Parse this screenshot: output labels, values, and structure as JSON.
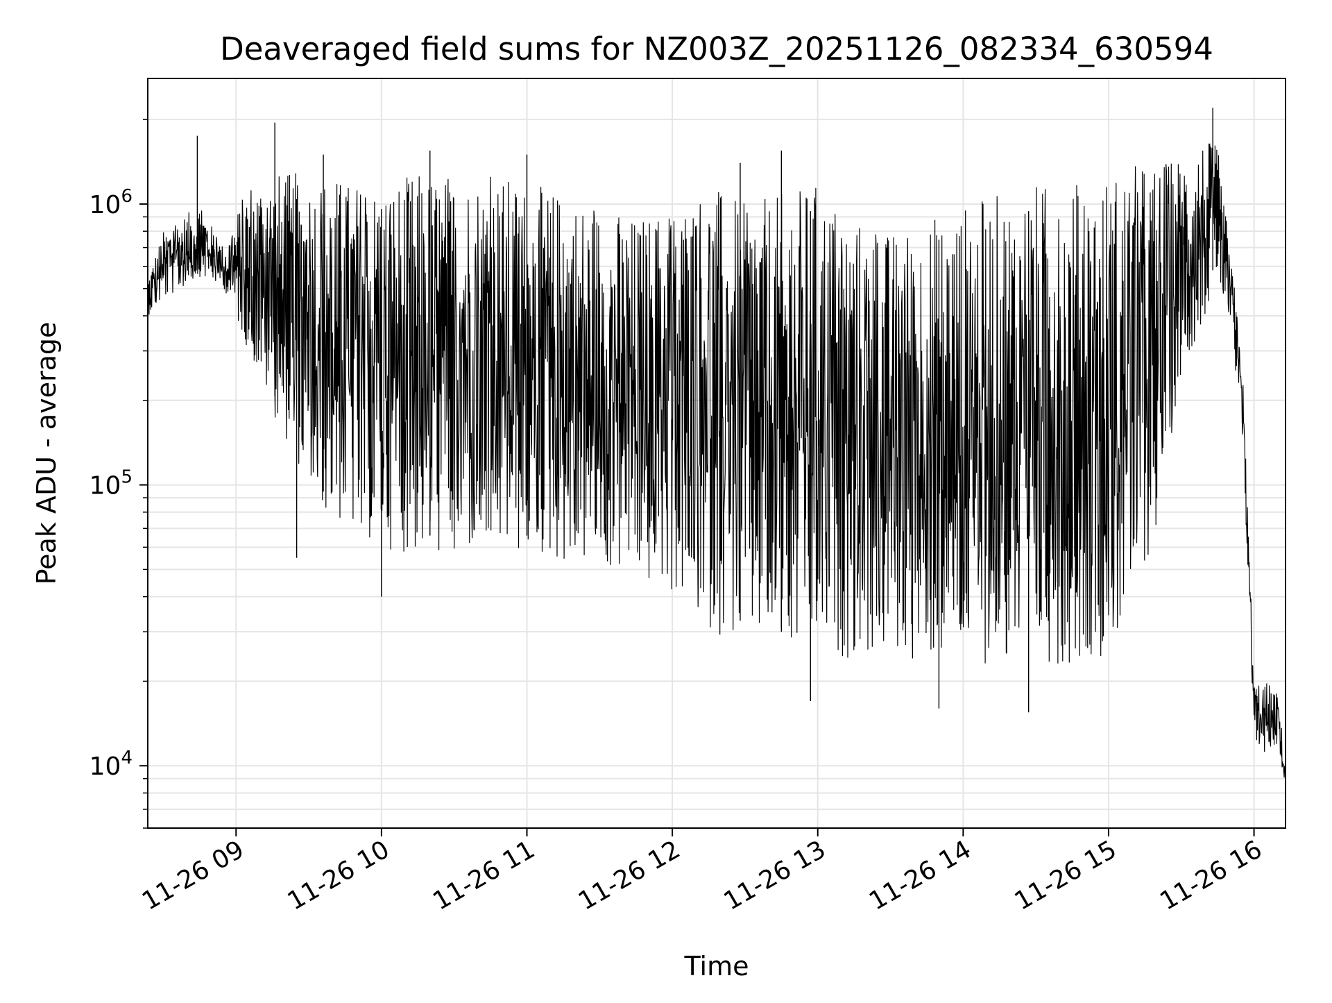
{
  "chart_data": {
    "type": "line",
    "title": "Deaveraged field sums for NZ003Z_20251126_082334_630594",
    "xlabel": "Time",
    "ylabel": "Peak ADU - average",
    "yscale": "log",
    "ylim": [
      6000,
      2800000
    ],
    "xlim": [
      "2025-11-26 08:23:34",
      "2025-11-26 16:13:00"
    ],
    "grid": true,
    "line_color": "#000000",
    "grid_color": "#e5e5e5",
    "x_ticks": [
      {
        "value": "2025-11-26 09:00",
        "label": "11-26 09"
      },
      {
        "value": "2025-11-26 10:00",
        "label": "11-26 10"
      },
      {
        "value": "2025-11-26 11:00",
        "label": "11-26 11"
      },
      {
        "value": "2025-11-26 12:00",
        "label": "11-26 12"
      },
      {
        "value": "2025-11-26 13:00",
        "label": "11-26 13"
      },
      {
        "value": "2025-11-26 14:00",
        "label": "11-26 14"
      },
      {
        "value": "2025-11-26 15:00",
        "label": "11-26 15"
      },
      {
        "value": "2025-11-26 16:00",
        "label": "11-26 16"
      }
    ],
    "y_ticks": [
      {
        "value": 10000,
        "base": "10",
        "exp": "4"
      },
      {
        "value": 100000,
        "base": "10",
        "exp": "5"
      },
      {
        "value": 1000000,
        "base": "10",
        "exp": "6"
      }
    ],
    "envelope": {
      "x": [
        "2025-11-26 08:23:34",
        "2025-11-26 08:30",
        "2025-11-26 08:45",
        "2025-11-26 08:55",
        "2025-11-26 09:05",
        "2025-11-26 09:15",
        "2025-11-26 09:25",
        "2025-11-26 09:35",
        "2025-11-26 09:50",
        "2025-11-26 10:00",
        "2025-11-26 10:15",
        "2025-11-26 10:30",
        "2025-11-26 10:45",
        "2025-11-26 11:00",
        "2025-11-26 11:15",
        "2025-11-26 11:30",
        "2025-11-26 11:45",
        "2025-11-26 12:00",
        "2025-11-26 12:15",
        "2025-11-26 12:30",
        "2025-11-26 12:45",
        "2025-11-26 13:00",
        "2025-11-26 13:15",
        "2025-11-26 13:30",
        "2025-11-26 13:45",
        "2025-11-26 14:00",
        "2025-11-26 14:15",
        "2025-11-26 14:30",
        "2025-11-26 14:45",
        "2025-11-26 15:00",
        "2025-11-26 15:10",
        "2025-11-26 15:20",
        "2025-11-26 15:30",
        "2025-11-26 15:40",
        "2025-11-26 15:45",
        "2025-11-26 15:50",
        "2025-11-26 15:55",
        "2025-11-26 15:58",
        "2025-11-26 16:00",
        "2025-11-26 16:05",
        "2025-11-26 16:10",
        "2025-11-26 16:13"
      ],
      "low": [
        400000,
        450000,
        550000,
        500000,
        300000,
        180000,
        120000,
        80000,
        65000,
        60000,
        55000,
        55000,
        55000,
        55000,
        52000,
        50000,
        45000,
        40000,
        30000,
        27000,
        25000,
        24000,
        24000,
        24000,
        23000,
        23000,
        23000,
        23000,
        23000,
        25000,
        35000,
        70000,
        250000,
        400000,
        550000,
        350000,
        150000,
        40000,
        12000,
        11000,
        12000,
        8000
      ],
      "high": [
        550000,
        800000,
        1000000,
        700000,
        1200000,
        1300000,
        1300000,
        1300000,
        1200000,
        1200000,
        1300000,
        1300000,
        1300000,
        1200000,
        1100000,
        1000000,
        900000,
        1000000,
        1200000,
        1000000,
        1100000,
        1200000,
        900000,
        800000,
        900000,
        1000000,
        1100000,
        1200000,
        1200000,
        1300000,
        1400000,
        1400000,
        1500000,
        1700000,
        1600000,
        700000,
        300000,
        60000,
        20000,
        20000,
        18000,
        10000
      ]
    },
    "spikes": [
      {
        "x": "2025-11-26 08:44",
        "y": 1750000
      },
      {
        "x": "2025-11-26 09:16",
        "y": 1950000
      },
      {
        "x": "2025-11-26 09:36",
        "y": 1500000
      },
      {
        "x": "2025-11-26 10:20",
        "y": 1550000
      },
      {
        "x": "2025-11-26 11:00",
        "y": 1500000
      },
      {
        "x": "2025-11-26 12:28",
        "y": 1400000
      },
      {
        "x": "2025-11-26 12:45",
        "y": 1550000
      },
      {
        "x": "2025-11-26 15:43",
        "y": 2200000
      },
      {
        "x": "2025-11-26 10:00",
        "y": 40000
      },
      {
        "x": "2025-11-26 09:25",
        "y": 55000
      },
      {
        "x": "2025-11-26 12:57",
        "y": 17000
      },
      {
        "x": "2025-11-26 13:50",
        "y": 16000
      },
      {
        "x": "2025-11-26 14:27",
        "y": 15500
      }
    ]
  }
}
